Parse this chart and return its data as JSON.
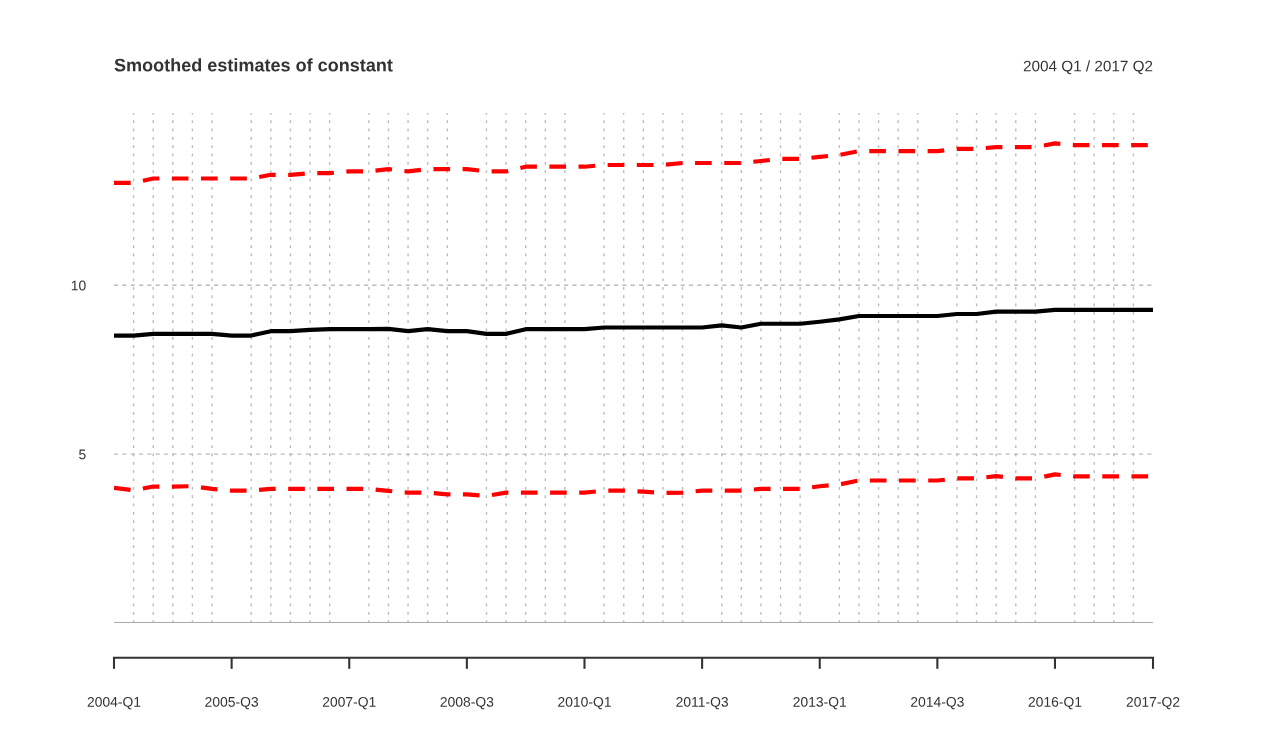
{
  "chart_data": {
    "type": "line",
    "title": "Smoothed estimates of constant",
    "subtitle": "2004 Q1 / 2017 Q2",
    "categories": [
      "2004-Q1",
      null,
      null,
      null,
      null,
      null,
      "2005-Q3",
      null,
      null,
      null,
      null,
      null,
      "2007-Q1",
      null,
      null,
      null,
      null,
      null,
      "2008-Q3",
      null,
      null,
      null,
      null,
      null,
      "2010-Q1",
      null,
      null,
      null,
      null,
      null,
      "2011-Q3",
      null,
      null,
      null,
      null,
      null,
      "2013-Q1",
      null,
      null,
      null,
      null,
      null,
      "2014-Q3",
      null,
      null,
      null,
      null,
      null,
      "2016-Q1",
      null,
      null,
      null,
      null,
      "2017-Q2"
    ],
    "ylim": [
      0,
      15.1
    ],
    "yticks": [
      5,
      10
    ],
    "grid": true,
    "series": [
      {
        "color": "#000000",
        "line_style": "solid",
        "values": [
          8.51,
          8.51,
          8.56,
          8.56,
          8.56,
          8.56,
          8.51,
          8.51,
          8.64,
          8.64,
          8.68,
          8.7,
          8.7,
          8.7,
          8.71,
          8.64,
          8.7,
          8.64,
          8.64,
          8.56,
          8.56,
          8.7,
          8.7,
          8.7,
          8.7,
          8.75,
          8.75,
          8.75,
          8.75,
          8.75,
          8.75,
          8.81,
          8.75,
          8.86,
          8.86,
          8.86,
          8.92,
          8.99,
          9.09,
          9.09,
          9.09,
          9.09,
          9.09,
          9.15,
          9.15,
          9.22,
          9.22,
          9.22,
          9.27,
          9.27,
          9.27,
          9.27,
          9.27,
          9.27
        ]
      },
      {
        "color": "#ff0000",
        "line_style": "dashed",
        "values": [
          13.03,
          13.03,
          13.16,
          13.16,
          13.16,
          13.16,
          13.16,
          13.16,
          13.27,
          13.27,
          13.32,
          13.32,
          13.37,
          13.37,
          13.44,
          13.37,
          13.44,
          13.44,
          13.44,
          13.37,
          13.37,
          13.51,
          13.51,
          13.51,
          13.51,
          13.56,
          13.56,
          13.56,
          13.56,
          13.62,
          13.62,
          13.62,
          13.62,
          13.68,
          13.74,
          13.74,
          13.8,
          13.86,
          13.97,
          13.97,
          13.97,
          13.97,
          13.97,
          14.04,
          14.04,
          14.09,
          14.09,
          14.09,
          14.2,
          14.15,
          14.15,
          14.15,
          14.15,
          14.15
        ]
      },
      {
        "color": "#ff0000",
        "line_style": "dashed",
        "values": [
          4.0,
          3.93,
          4.04,
          4.04,
          4.05,
          3.97,
          3.92,
          3.92,
          3.97,
          3.97,
          3.97,
          3.97,
          3.97,
          3.97,
          3.91,
          3.86,
          3.86,
          3.81,
          3.81,
          3.76,
          3.86,
          3.86,
          3.86,
          3.86,
          3.86,
          3.92,
          3.92,
          3.89,
          3.85,
          3.86,
          3.92,
          3.92,
          3.92,
          3.97,
          3.97,
          3.97,
          4.05,
          4.1,
          4.22,
          4.22,
          4.22,
          4.22,
          4.22,
          4.28,
          4.28,
          4.35,
          4.28,
          4.28,
          4.4,
          4.34,
          4.34,
          4.34,
          4.34,
          4.34
        ]
      }
    ]
  }
}
